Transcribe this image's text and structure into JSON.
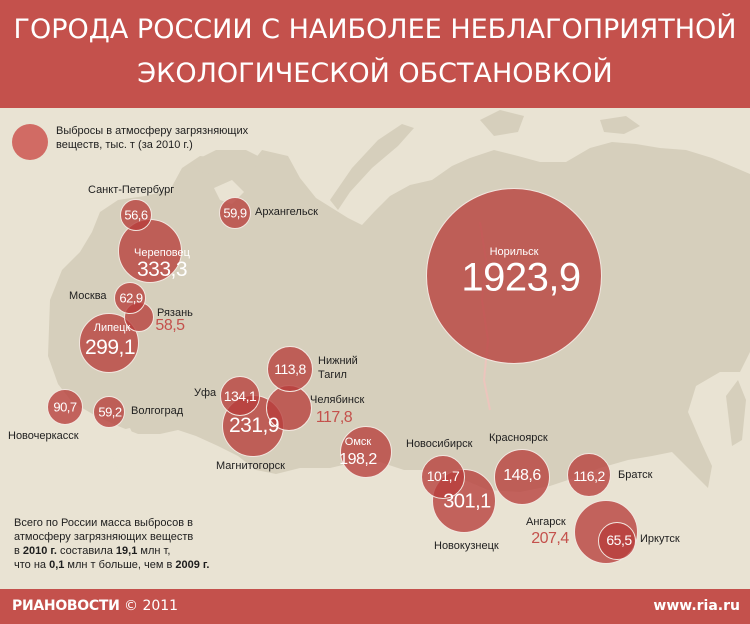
{
  "header": {
    "title_line1": "ГОРОДА РОССИИ С НАИБОЛЕЕ НЕБЛАГОПРИЯТНОЙ",
    "title_line2": "ЭКОЛОГИЧЕСКОЙ ОБСТАНОВКОЙ"
  },
  "legend": {
    "line1": "Выбросы в атмосферу загрязняющих",
    "line2": "веществ, тыс. т (за 2010 г.)"
  },
  "cities": [
    {
      "id": "saint-petersburg",
      "name": "Санкт-Петербург",
      "value": "56,6"
    },
    {
      "id": "arkhangelsk",
      "name": "Архангельск",
      "value": "59,9"
    },
    {
      "id": "cherepovets",
      "name": "Череповец",
      "value": "333,3"
    },
    {
      "id": "moscow",
      "name": "Москва",
      "value": "62,9"
    },
    {
      "id": "ryazan",
      "name": "Рязань",
      "value": "58,5"
    },
    {
      "id": "lipetsk",
      "name": "Липецк",
      "value": "299,1"
    },
    {
      "id": "novocherkassk",
      "name": "Новочеркасск",
      "value": "90,7"
    },
    {
      "id": "volgograd",
      "name": "Волгоград",
      "value": "59,2"
    },
    {
      "id": "ufa",
      "name": "Уфа",
      "value": "134,1"
    },
    {
      "id": "magnitogorsk",
      "name": "Магнитогорск",
      "value": "231,9"
    },
    {
      "id": "nizhny-tagil",
      "name_line1": "Нижний",
      "name_line2": "Тагил",
      "value": "113,8"
    },
    {
      "id": "chelyabinsk",
      "name": "Челябинск",
      "value": "117,8"
    },
    {
      "id": "omsk",
      "name": "Омск",
      "value": "198,2"
    },
    {
      "id": "novosibirsk",
      "name": "Новосибирск",
      "value": "101,7"
    },
    {
      "id": "novokuznetsk",
      "name": "Новокузнецк",
      "value": "301,1"
    },
    {
      "id": "krasnoyarsk",
      "name": "Красноярск",
      "value": "148,6"
    },
    {
      "id": "norilsk",
      "name": "Норильск",
      "value": "1923,9"
    },
    {
      "id": "bratsk",
      "name": "Братск",
      "value": "116,2"
    },
    {
      "id": "angarsk",
      "name": "Ангарск",
      "value": "207,4"
    },
    {
      "id": "irkutsk",
      "name": "Иркутск",
      "value": "65,5"
    }
  ],
  "note": {
    "line1": "Всего по России масса выбросов в",
    "line2": "атмосферу загрязняющих веществ",
    "line3_pre": "в ",
    "year_2010": "2010 г.",
    "line3_mid": " составила ",
    "total": "19,1",
    "line3_post": " млн т,",
    "line4_pre": "что на ",
    "delta": "0,1",
    "line4_mid": " млн т больше, чем в ",
    "year_2009": "2009 г.",
    "line4_post": ""
  },
  "footer": {
    "brand": "РИАНОВОСТИ",
    "copyright": "© 2011",
    "site": "www.ria.ru"
  },
  "colors": {
    "header_bg": "#c4514c",
    "bubble": "#b73d3b",
    "land": "#d6cfbc",
    "sea": "#e9e3d3"
  }
}
